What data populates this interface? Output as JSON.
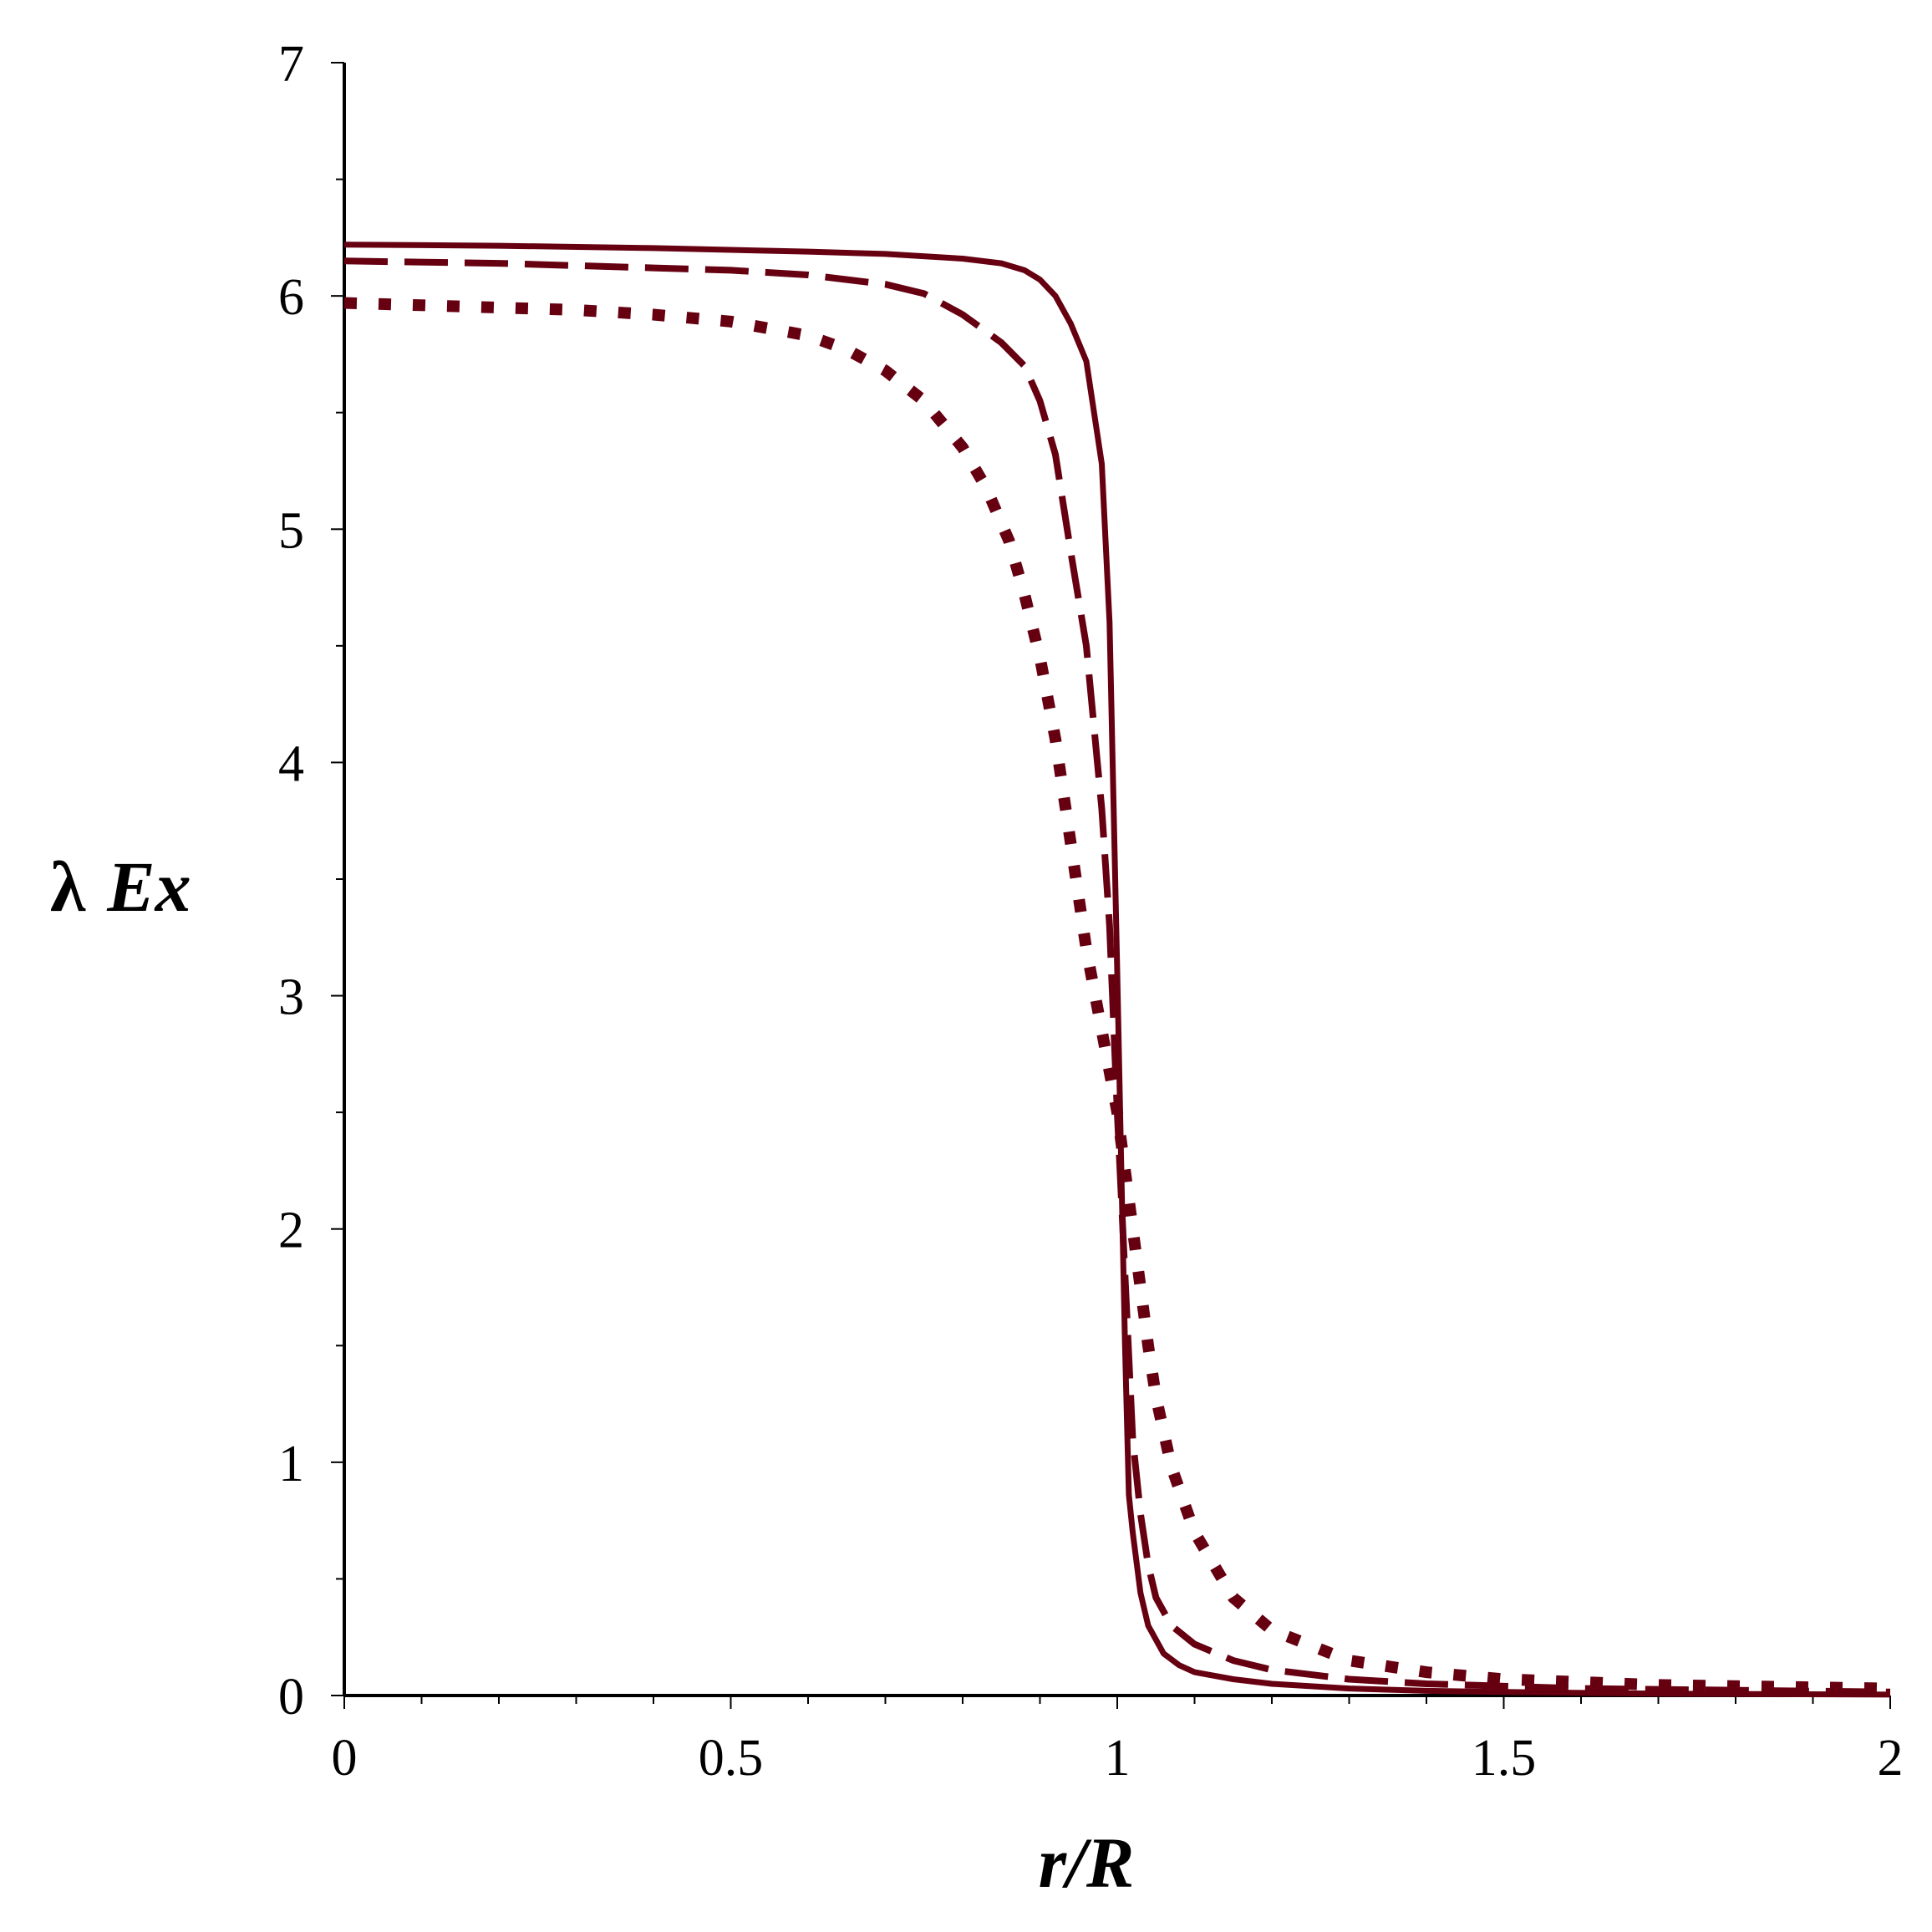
{
  "chart_data": {
    "type": "line",
    "title": "",
    "xlabel": "r/R",
    "ylabel_prefix": "λ",
    "ylabel_main": "Ex",
    "xlim": [
      0,
      2
    ],
    "ylim": [
      0,
      7
    ],
    "xticks": [
      0,
      0.5,
      1,
      1.5,
      2
    ],
    "xtick_labels": [
      "0",
      "0.5",
      "1",
      "1.5",
      "2"
    ],
    "yticks": [
      0,
      1,
      2,
      3,
      4,
      5,
      6,
      7
    ],
    "ytick_labels": [
      "0",
      "1",
      "2",
      "3",
      "4",
      "5",
      "6",
      "7"
    ],
    "grid": false,
    "legend": "none",
    "line_color": "#660011",
    "series": [
      {
        "style": "solid",
        "x": [
          0,
          0.2,
          0.4,
          0.6,
          0.7,
          0.8,
          0.85,
          0.88,
          0.9,
          0.92,
          0.94,
          0.96,
          0.98,
          0.99,
          1.0,
          1.005,
          1.01,
          1.015,
          1.02,
          1.03,
          1.04,
          1.06,
          1.08,
          1.1,
          1.15,
          1.2,
          1.3,
          1.4,
          1.5,
          1.7,
          2.0
        ],
        "y": [
          6.22,
          6.215,
          6.205,
          6.19,
          6.18,
          6.16,
          6.14,
          6.11,
          6.07,
          6.0,
          5.88,
          5.72,
          5.28,
          4.6,
          3.1,
          2.3,
          1.5,
          0.86,
          0.7,
          0.44,
          0.3,
          0.18,
          0.13,
          0.1,
          0.07,
          0.05,
          0.03,
          0.02,
          0.015,
          0.008,
          0.004
        ]
      },
      {
        "style": "dashed",
        "x": [
          0,
          0.2,
          0.4,
          0.5,
          0.6,
          0.7,
          0.75,
          0.8,
          0.85,
          0.88,
          0.9,
          0.92,
          0.94,
          0.96,
          0.98,
          0.99,
          1.0,
          1.01,
          1.02,
          1.03,
          1.04,
          1.05,
          1.07,
          1.1,
          1.15,
          1.2,
          1.3,
          1.4,
          1.6,
          2.0
        ],
        "y": [
          6.15,
          6.14,
          6.12,
          6.11,
          6.09,
          6.05,
          6.01,
          5.92,
          5.8,
          5.7,
          5.55,
          5.32,
          4.9,
          4.5,
          3.8,
          3.3,
          2.5,
          1.8,
          1.1,
          0.78,
          0.56,
          0.42,
          0.3,
          0.22,
          0.15,
          0.11,
          0.07,
          0.05,
          0.03,
          0.015
        ]
      },
      {
        "style": "dotted",
        "x": [
          0,
          0.1,
          0.2,
          0.3,
          0.4,
          0.5,
          0.55,
          0.6,
          0.65,
          0.7,
          0.75,
          0.8,
          0.83,
          0.86,
          0.88,
          0.9,
          0.92,
          0.94,
          0.96,
          0.98,
          1.0,
          1.01,
          1.02,
          1.03,
          1.04,
          1.05,
          1.07,
          1.1,
          1.15,
          1.2,
          1.3,
          1.4,
          1.5,
          1.7,
          2.0
        ],
        "y": [
          5.97,
          5.96,
          5.95,
          5.94,
          5.92,
          5.89,
          5.86,
          5.83,
          5.77,
          5.68,
          5.55,
          5.35,
          5.18,
          4.95,
          4.72,
          4.45,
          4.1,
          3.65,
          3.2,
          2.85,
          2.5,
          2.25,
          2.0,
          1.75,
          1.5,
          1.28,
          0.98,
          0.7,
          0.42,
          0.28,
          0.15,
          0.1,
          0.07,
          0.045,
          0.03
        ]
      }
    ]
  }
}
